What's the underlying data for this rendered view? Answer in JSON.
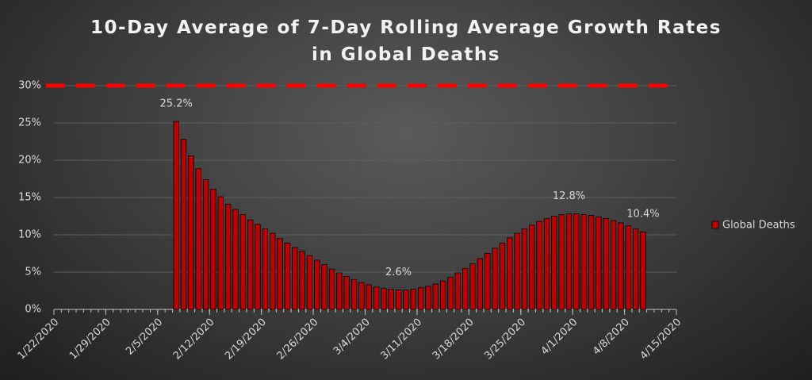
{
  "chart_data": {
    "type": "bar",
    "title": "10-Day Average of 7-Day Rolling Average Growth Rates in Global Deaths",
    "x": [
      "2/7/2020",
      "2/8/2020",
      "2/9/2020",
      "2/10/2020",
      "2/11/2020",
      "2/12/2020",
      "2/13/2020",
      "2/14/2020",
      "2/15/2020",
      "2/16/2020",
      "2/17/2020",
      "2/18/2020",
      "2/19/2020",
      "2/20/2020",
      "2/21/2020",
      "2/22/2020",
      "2/23/2020",
      "2/24/2020",
      "2/25/2020",
      "2/26/2020",
      "2/27/2020",
      "2/28/2020",
      "2/29/2020",
      "3/1/2020",
      "3/2/2020",
      "3/3/2020",
      "3/4/2020",
      "3/5/2020",
      "3/6/2020",
      "3/7/2020",
      "3/8/2020",
      "3/9/2020",
      "3/10/2020",
      "3/11/2020",
      "3/12/2020",
      "3/13/2020",
      "3/14/2020",
      "3/15/2020",
      "3/16/2020",
      "3/17/2020",
      "3/18/2020",
      "3/19/2020",
      "3/20/2020",
      "3/21/2020",
      "3/22/2020",
      "3/23/2020",
      "3/24/2020",
      "3/25/2020",
      "3/26/2020",
      "3/27/2020",
      "3/28/2020",
      "3/29/2020",
      "3/30/2020",
      "3/31/2020",
      "4/1/2020",
      "4/2/2020",
      "4/3/2020",
      "4/4/2020",
      "4/5/2020",
      "4/6/2020",
      "4/7/2020",
      "4/8/2020",
      "4/9/2020",
      "4/10/2020"
    ],
    "series": [
      {
        "name": "Global Deaths",
        "color": "#c00000",
        "values": [
          25.2,
          22.8,
          20.6,
          18.9,
          17.4,
          16.1,
          15.1,
          14.1,
          13.4,
          12.7,
          12.0,
          11.4,
          10.8,
          10.2,
          9.5,
          8.9,
          8.3,
          7.8,
          7.2,
          6.6,
          6.0,
          5.4,
          4.9,
          4.4,
          4.0,
          3.6,
          3.3,
          3.0,
          2.8,
          2.7,
          2.6,
          2.6,
          2.7,
          2.9,
          3.1,
          3.4,
          3.8,
          4.3,
          4.9,
          5.5,
          6.1,
          6.8,
          7.5,
          8.2,
          8.9,
          9.6,
          10.2,
          10.8,
          11.3,
          11.8,
          12.2,
          12.5,
          12.7,
          12.8,
          12.8,
          12.7,
          12.6,
          12.4,
          12.2,
          11.9,
          11.6,
          11.2,
          10.8,
          10.4
        ],
        "value_labels": [
          "25.2%",
          null,
          null,
          null,
          null,
          null,
          null,
          null,
          null,
          null,
          null,
          null,
          null,
          null,
          null,
          null,
          null,
          null,
          null,
          null,
          null,
          null,
          null,
          null,
          null,
          null,
          null,
          null,
          null,
          null,
          "2.6%",
          null,
          null,
          null,
          null,
          null,
          null,
          null,
          null,
          null,
          null,
          null,
          null,
          null,
          null,
          null,
          null,
          null,
          null,
          null,
          null,
          null,
          null,
          "12.8%",
          null,
          null,
          null,
          null,
          null,
          null,
          null,
          null,
          null,
          "10.4%"
        ]
      }
    ],
    "xlim": [
      "1/22/2020",
      "4/15/2020"
    ],
    "xticks": [
      "1/22/2020",
      "1/29/2020",
      "2/5/2020",
      "2/12/2020",
      "2/19/2020",
      "2/26/2020",
      "3/4/2020",
      "3/11/2020",
      "3/18/2020",
      "3/25/2020",
      "4/1/2020",
      "4/8/2020",
      "4/15/2020"
    ],
    "ylim": [
      0,
      30
    ],
    "yticks": [
      {
        "value": 0,
        "label": "0%"
      },
      {
        "value": 5,
        "label": "5%"
      },
      {
        "value": 10,
        "label": "10%"
      },
      {
        "value": 15,
        "label": "15%"
      },
      {
        "value": 20,
        "label": "20%"
      },
      {
        "value": 25,
        "label": "25%"
      },
      {
        "value": 30,
        "label": "30%"
      }
    ],
    "reference_line": {
      "value": 30,
      "color": "#ff0000"
    },
    "grid": true,
    "legend": "right"
  }
}
